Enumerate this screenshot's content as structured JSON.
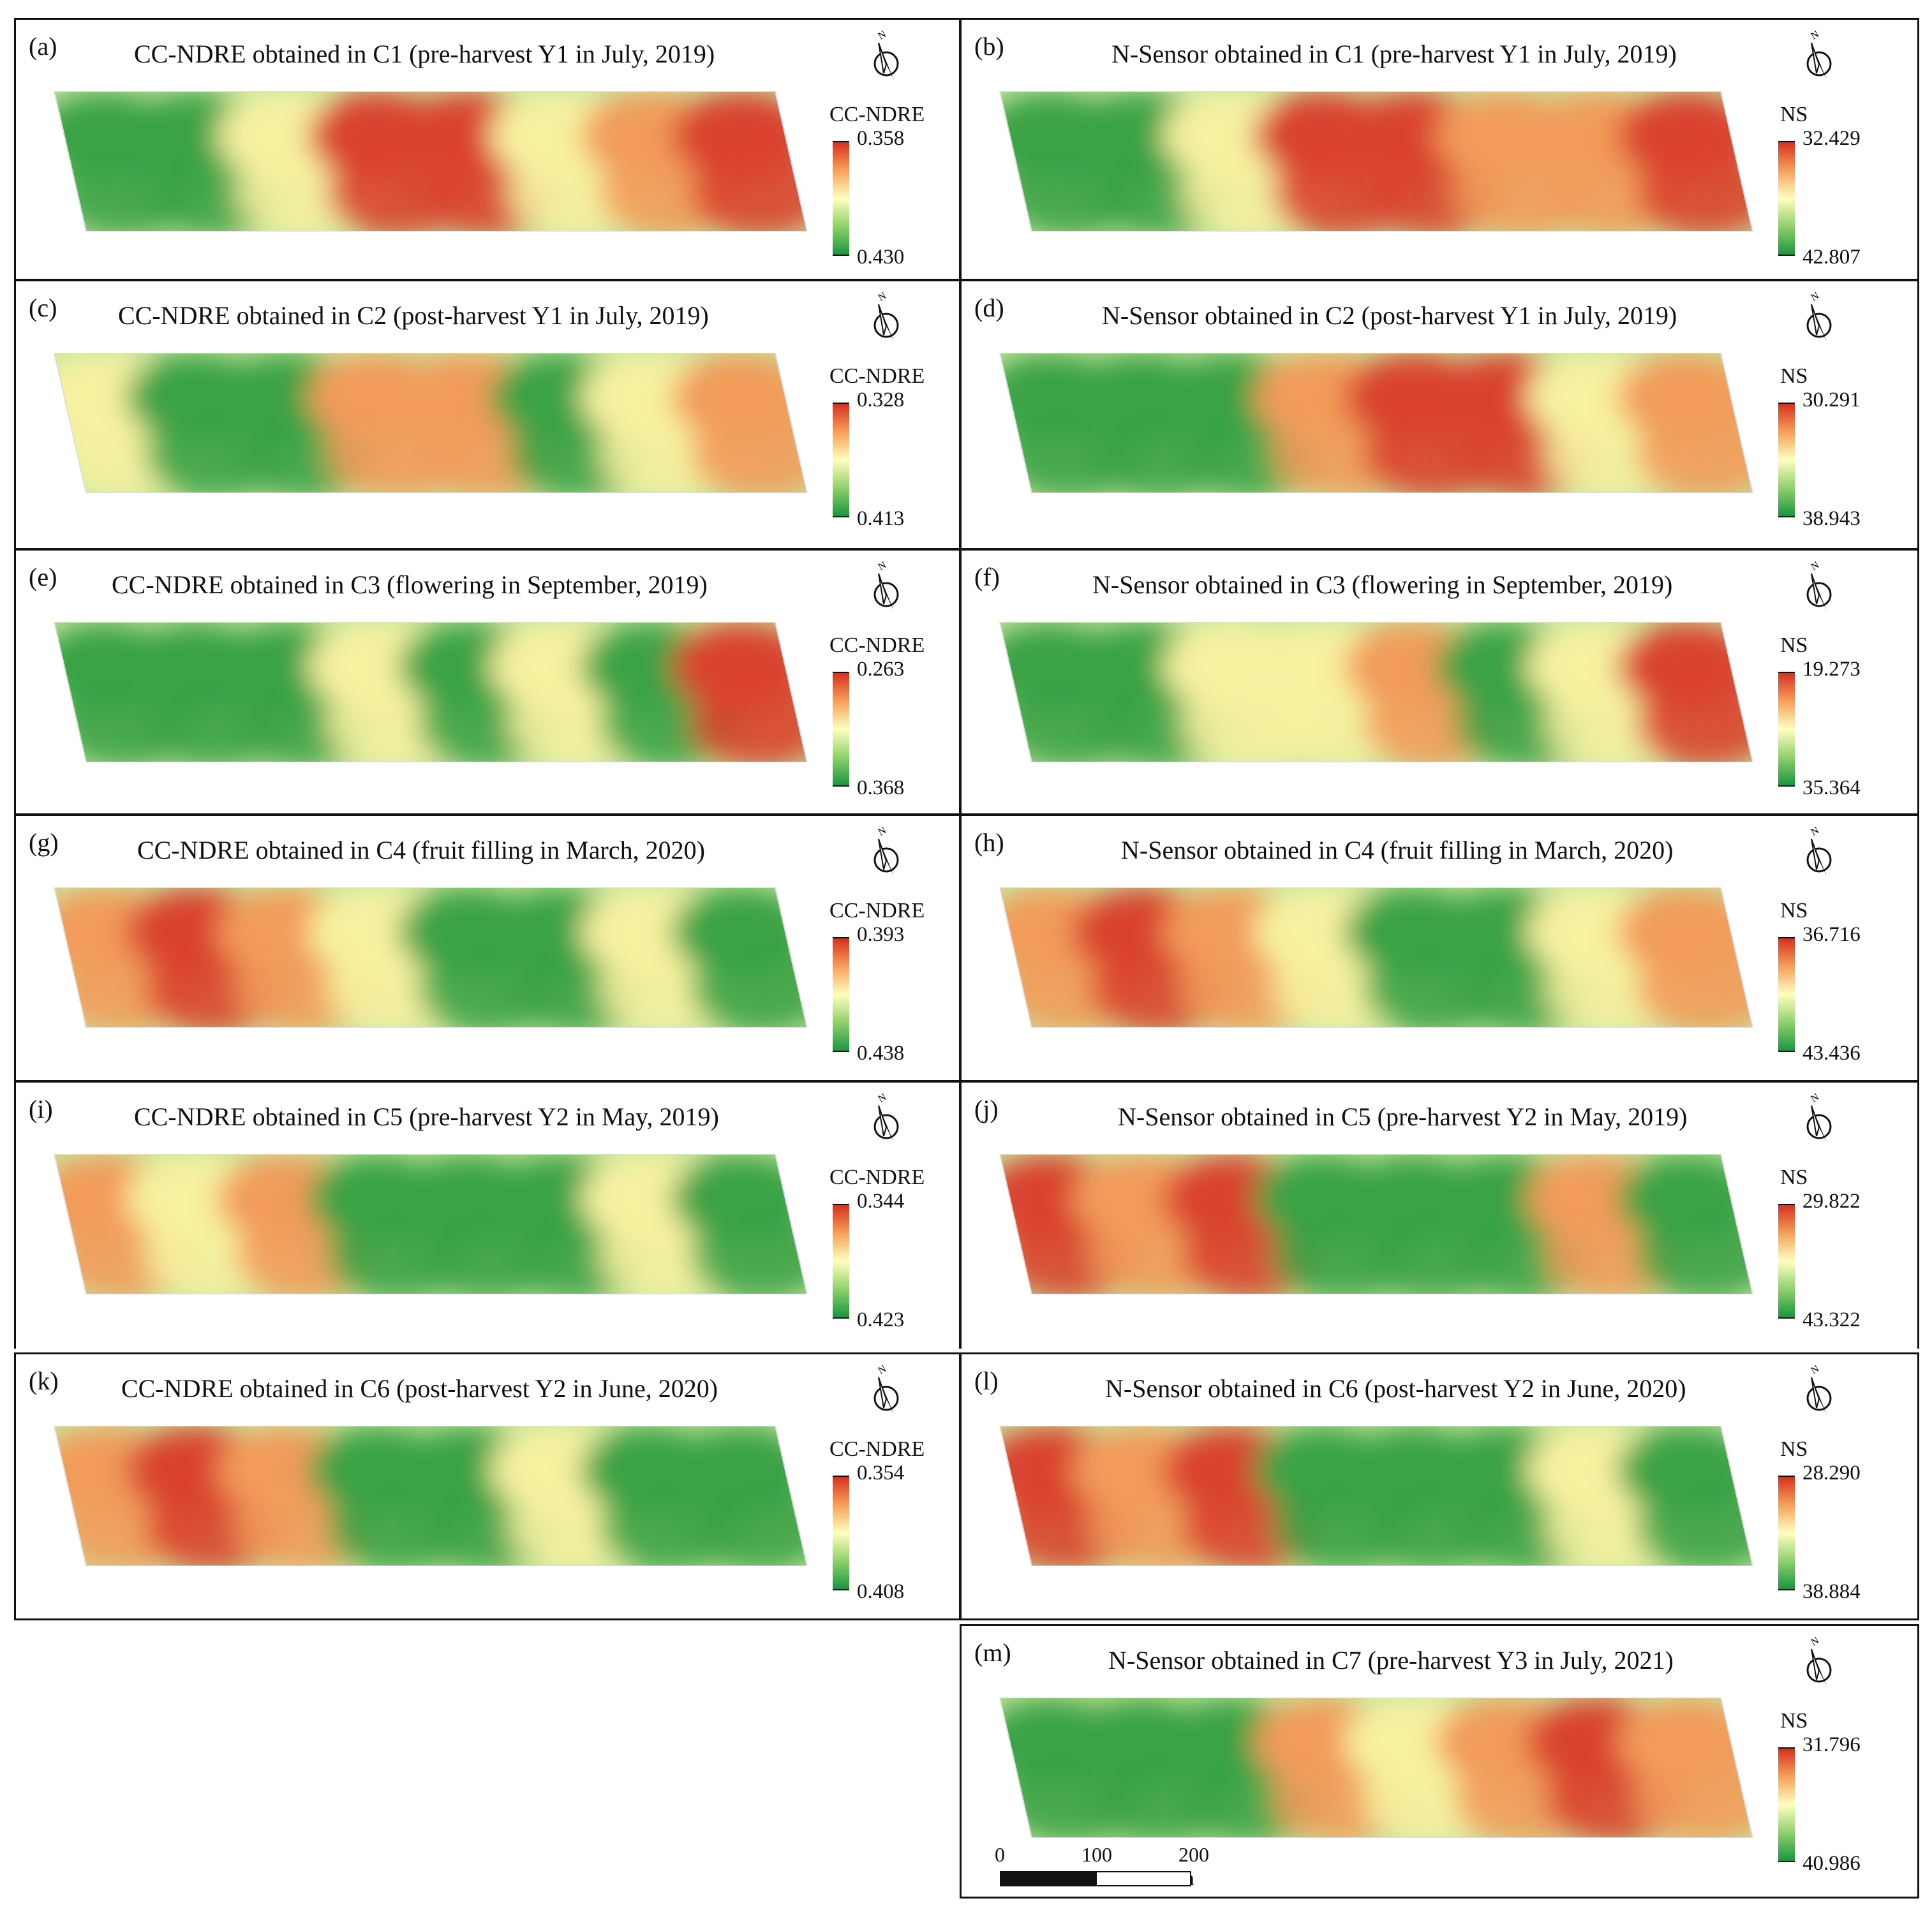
{
  "panels": [
    {
      "id": "a",
      "label": "(a)",
      "title": "CC-NDRE obtained in C1 (pre-harvest Y1 in July, 2019)",
      "legend_title": "CC-NDRE",
      "max": "0.358",
      "min": "0.430"
    },
    {
      "id": "b",
      "label": "(b)",
      "title": "N-Sensor obtained in C1 (pre-harvest Y1 in July, 2019)",
      "legend_title": "NS",
      "max": "32.429",
      "min": "42.807"
    },
    {
      "id": "c",
      "label": "(c)",
      "title": "CC-NDRE obtained in C2 (post-harvest Y1 in July, 2019)",
      "legend_title": "CC-NDRE",
      "max": "0.328",
      "min": "0.413"
    },
    {
      "id": "d",
      "label": "(d)",
      "title": "N-Sensor obtained in C2 (post-harvest Y1 in July, 2019)",
      "legend_title": "NS",
      "max": "30.291",
      "min": "38.943"
    },
    {
      "id": "e",
      "label": "(e)",
      "title": "CC-NDRE obtained in C3 (flowering in September, 2019)",
      "legend_title": "CC-NDRE",
      "max": "0.263",
      "min": "0.368"
    },
    {
      "id": "f",
      "label": "(f)",
      "title": "N-Sensor obtained in C3 (flowering  in September, 2019)",
      "legend_title": "NS",
      "max": "19.273",
      "min": "35.364"
    },
    {
      "id": "g",
      "label": "(g)",
      "title": "CC-NDRE obtained in C4 (fruit filling in March, 2020)",
      "legend_title": "CC-NDRE",
      "max": "0.393",
      "min": "0.438"
    },
    {
      "id": "h",
      "label": "(h)",
      "title": "N-Sensor obtained in C4 (fruit filling in March, 2020)",
      "legend_title": "NS",
      "max": "36.716",
      "min": "43.436"
    },
    {
      "id": "i",
      "label": "(i)",
      "title": "CC-NDRE obtained in C5 (pre-harvest Y2 in May, 2019)",
      "legend_title": "CC-NDRE",
      "max": "0.344",
      "min": "0.423"
    },
    {
      "id": "j",
      "label": "(j)",
      "title": "N-Sensor obtained in C5 (pre-harvest Y2 in May, 2019)",
      "legend_title": "NS",
      "max": "29.822",
      "min": "43.322"
    },
    {
      "id": "k",
      "label": "(k)",
      "title": "CC-NDRE obtained in C6 (post-harvest Y2 in June, 2020)",
      "legend_title": "CC-NDRE",
      "max": "0.354",
      "min": "0.408"
    },
    {
      "id": "l",
      "label": "(l)",
      "title": "N-Sensor obtained in C6 (post-harvest Y2 in June, 2020)",
      "legend_title": "NS",
      "max": "28.290",
      "min": "38.884"
    },
    {
      "id": "m",
      "label": "(m)",
      "title": "N-Sensor obtained in C7 (pre-harvest Y3 in July, 2021)",
      "legend_title": "NS",
      "max": "31.796",
      "min": "40.986"
    }
  ],
  "scale_bar": {
    "tick0": "0",
    "tick1": "100",
    "tick2": "200 m"
  },
  "colors": {
    "high": "#d7301f",
    "mid": "#ffffbf",
    "low": "#1a9641",
    "border": "#111111"
  },
  "icons": {
    "north_arrow": "north-arrow-icon"
  }
}
